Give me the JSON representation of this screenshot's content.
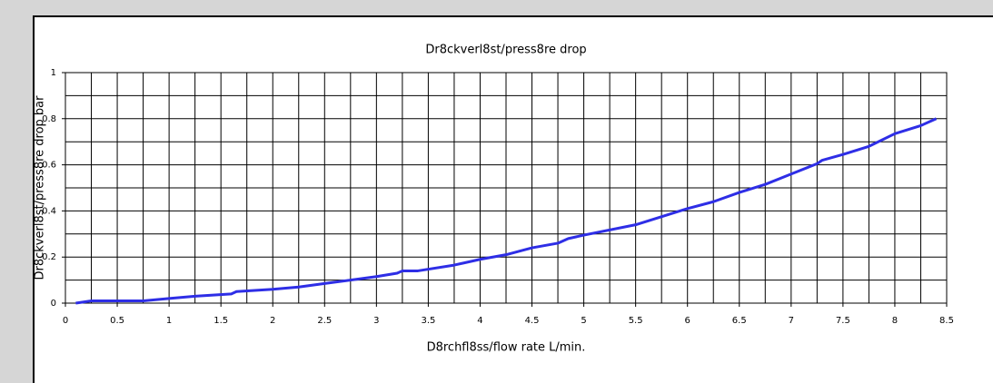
{
  "chart_data": {
    "type": "line",
    "title": "Dr8ckverl8st/press8re drop",
    "x_label": "D8rchfl8ss/flow rate L/min.",
    "y_label": "Dr8ckverl8st/press8re drop bar",
    "x": [
      0.1,
      0.25,
      0.75,
      1.0,
      1.25,
      1.6,
      1.65,
      2.0,
      2.25,
      2.5,
      3.0,
      3.2,
      3.25,
      3.4,
      3.75,
      4.0,
      4.25,
      4.5,
      4.75,
      4.85,
      5.0,
      5.5,
      6.0,
      6.25,
      6.5,
      6.75,
      7.0,
      7.25,
      7.3,
      7.5,
      7.75,
      8.0,
      8.25,
      8.4
    ],
    "series": [
      {
        "name": "press8re drop",
        "color": "#2e2ee6",
        "values": [
          0,
          0.01,
          0.01,
          0.02,
          0.03,
          0.04,
          0.05,
          0.06,
          0.07,
          0.085,
          0.115,
          0.13,
          0.14,
          0.14,
          0.165,
          0.19,
          0.21,
          0.24,
          0.26,
          0.28,
          0.295,
          0.34,
          0.41,
          0.44,
          0.48,
          0.515,
          0.56,
          0.605,
          0.62,
          0.645,
          0.68,
          0.735,
          0.77,
          0.8
        ]
      }
    ],
    "xlim": [
      0,
      8.5
    ],
    "ylim": [
      0,
      1
    ],
    "xticks": [
      0,
      0.5,
      1,
      1.5,
      2,
      2.5,
      3,
      3.5,
      4,
      4.5,
      5,
      5.5,
      6,
      6.5,
      7,
      7.5,
      8,
      8.5
    ],
    "yticks": [
      0,
      0.2,
      0.4,
      0.6,
      0.8,
      1
    ],
    "xminorticks": [
      0.25,
      0.75,
      1.25,
      1.75,
      2.25,
      2.75,
      3.25,
      3.75,
      4.25,
      4.75,
      5.25,
      5.75,
      6.25,
      6.75,
      7.25,
      7.75,
      8.25
    ],
    "yminorticks": [
      0.1,
      0.3,
      0.5,
      0.7,
      0.9
    ],
    "grid": true
  }
}
